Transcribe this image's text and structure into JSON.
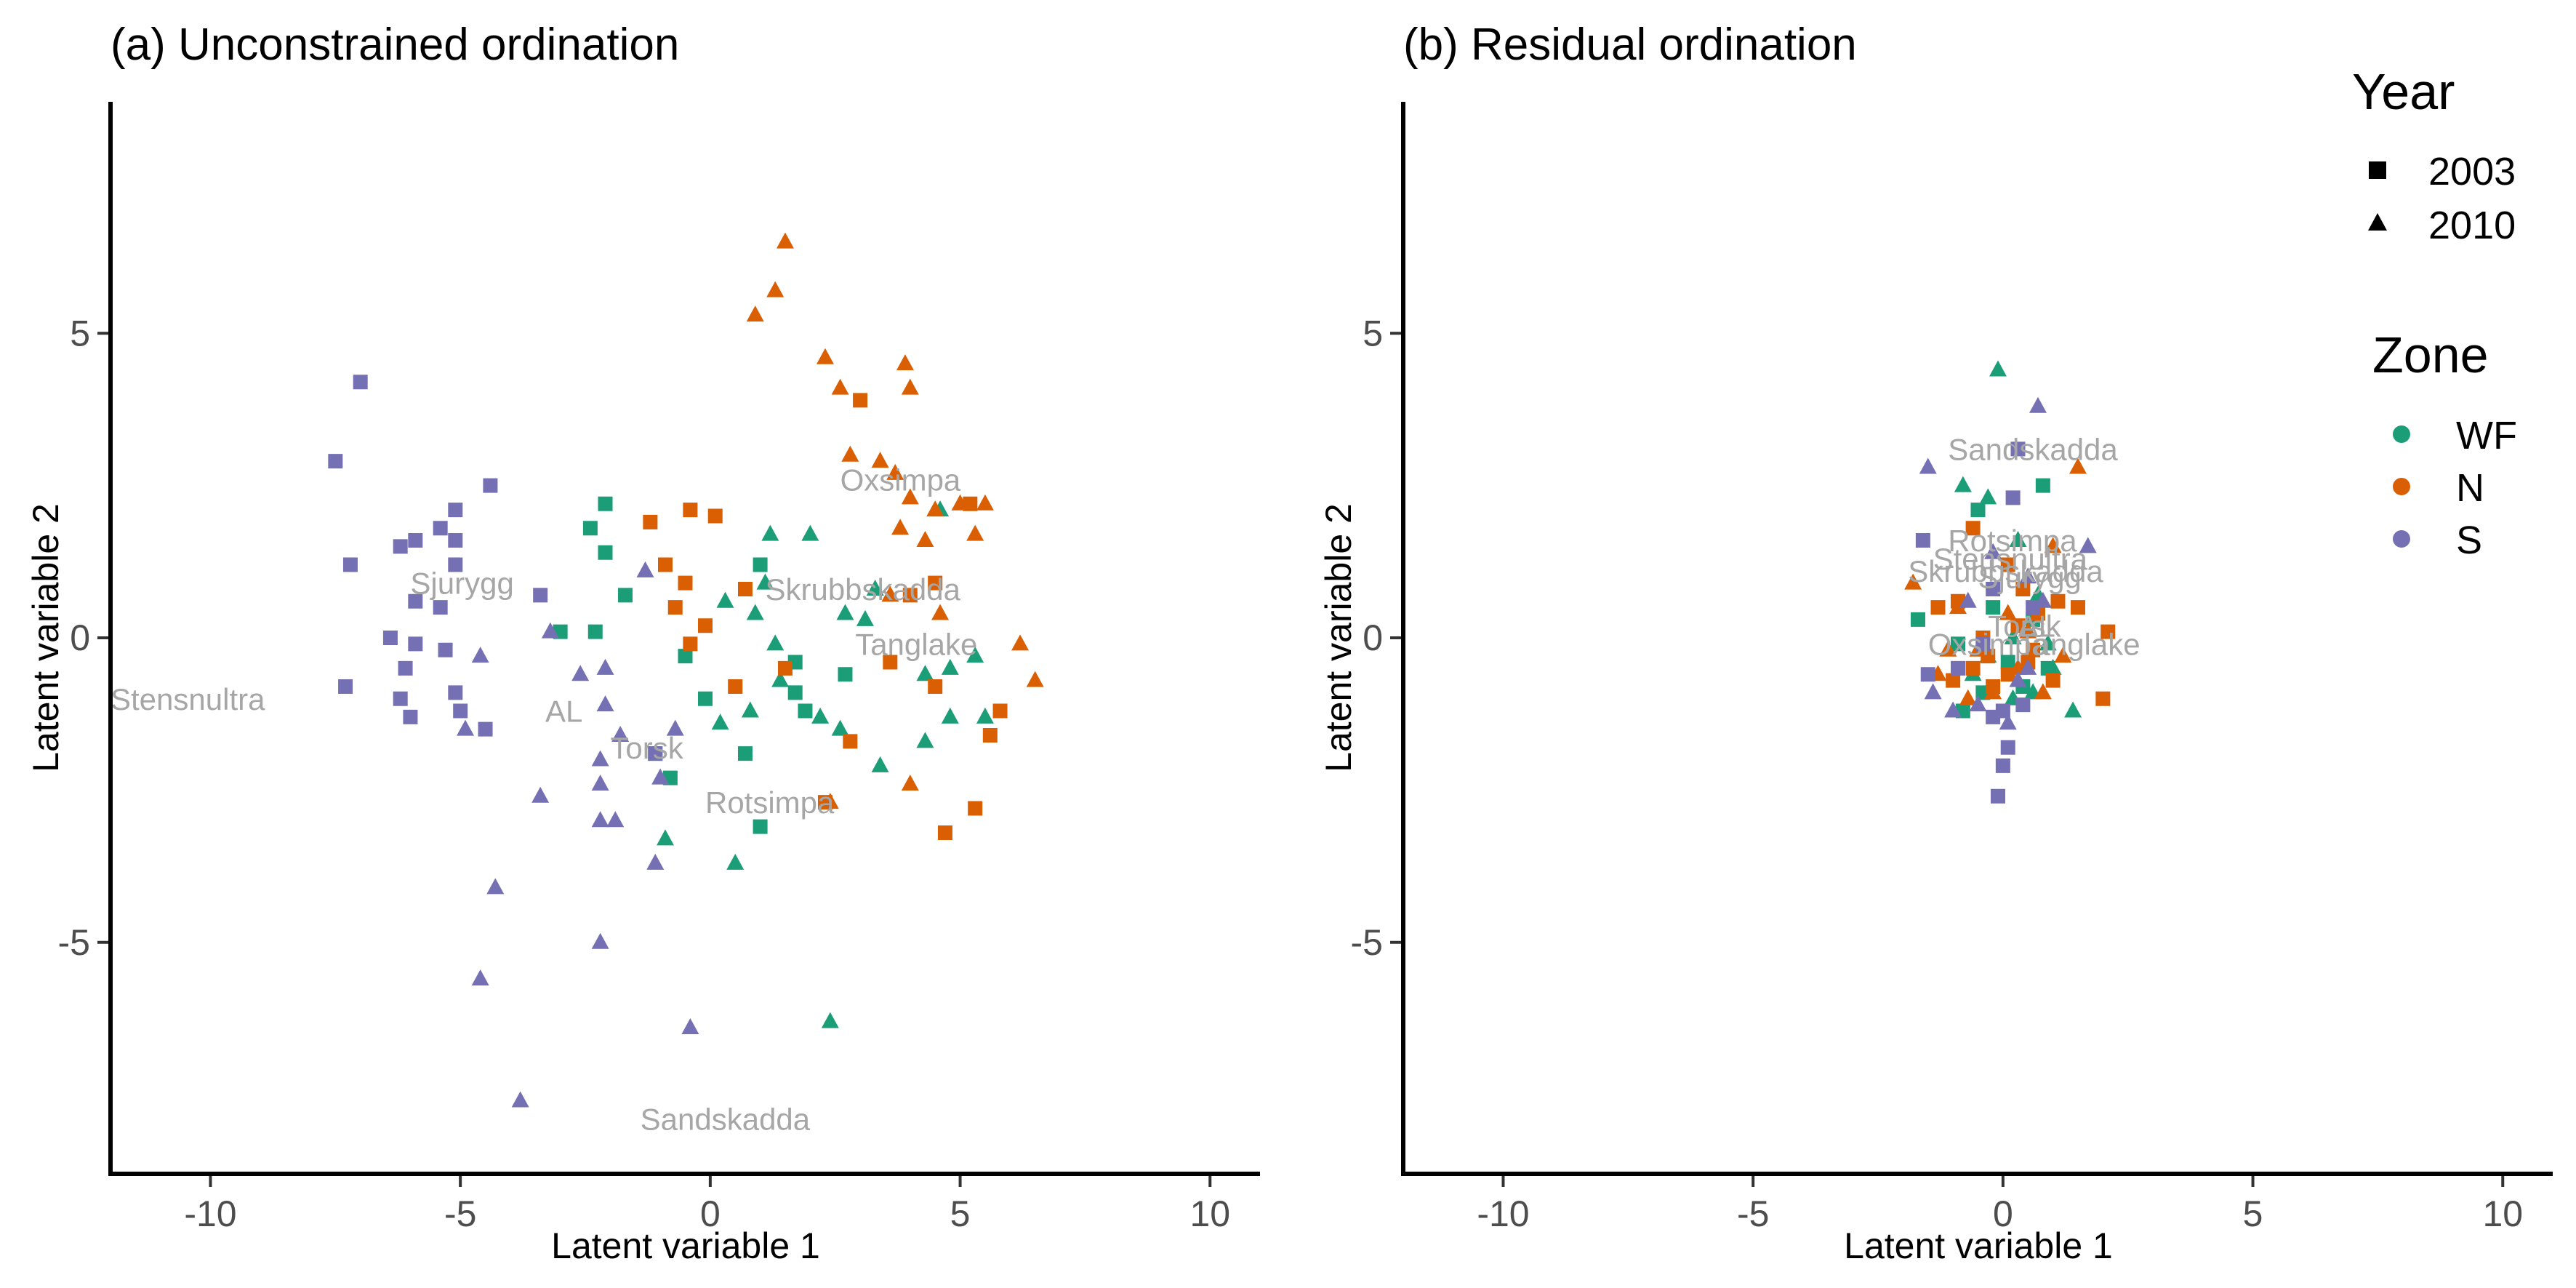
{
  "chart_data": [
    {
      "type": "scatter",
      "title": "(a) Unconstrained ordination",
      "xlabel": "Latent variable 1",
      "ylabel": "Latent variable 2",
      "xlim": [
        -12.0,
        11.0
      ],
      "ylim": [
        -8.8,
        8.8
      ],
      "xticks": [
        -10,
        -5,
        0,
        5,
        10
      ],
      "xtick_labels": [
        "-10",
        "-5",
        "0",
        "5",
        "10"
      ],
      "yticks": [
        -5,
        0,
        5
      ],
      "ytick_labels": [
        "-5",
        "0",
        "5"
      ],
      "grid": false,
      "series": [
        {
          "zone": "WF",
          "year": "2003",
          "points": [
            [
              -2.1,
              2.2
            ],
            [
              -2.4,
              1.8
            ],
            [
              -2.1,
              1.4
            ],
            [
              -1.7,
              0.7
            ],
            [
              -3.0,
              0.1
            ],
            [
              -2.3,
              0.1
            ],
            [
              -0.5,
              -0.3
            ],
            [
              -0.1,
              -1.0
            ],
            [
              -1.1,
              -1.9
            ],
            [
              -0.8,
              -2.3
            ],
            [
              0.7,
              -1.9
            ],
            [
              1.0,
              -3.1
            ],
            [
              1.7,
              -0.4
            ],
            [
              1.7,
              -0.9
            ],
            [
              1.9,
              -1.2
            ],
            [
              2.7,
              -0.6
            ],
            [
              1.0,
              1.2
            ]
          ]
        },
        {
          "zone": "WF",
          "year": "2010",
          "points": [
            [
              1.2,
              1.7
            ],
            [
              2.0,
              1.7
            ],
            [
              1.1,
              0.9
            ],
            [
              0.3,
              0.6
            ],
            [
              0.9,
              0.4
            ],
            [
              1.3,
              -0.1
            ],
            [
              1.4,
              -0.7
            ],
            [
              2.2,
              -1.3
            ],
            [
              2.6,
              -1.5
            ],
            [
              0.8,
              -1.2
            ],
            [
              0.2,
              -1.4
            ],
            [
              3.4,
              -2.1
            ],
            [
              4.3,
              -1.7
            ],
            [
              4.8,
              -1.3
            ],
            [
              5.5,
              -1.3
            ],
            [
              4.3,
              -0.6
            ],
            [
              4.8,
              -0.5
            ],
            [
              5.3,
              -0.3
            ],
            [
              4.6,
              2.1
            ],
            [
              3.1,
              0.3
            ],
            [
              3.3,
              0.8
            ],
            [
              2.7,
              0.4
            ],
            [
              -0.9,
              -3.3
            ],
            [
              0.5,
              -3.7
            ],
            [
              2.4,
              -6.3
            ]
          ]
        },
        {
          "zone": "N",
          "year": "2003",
          "points": [
            [
              -1.2,
              1.9
            ],
            [
              -0.4,
              2.1
            ],
            [
              0.1,
              2.0
            ],
            [
              -0.9,
              1.2
            ],
            [
              -0.5,
              0.9
            ],
            [
              0.7,
              0.8
            ],
            [
              -0.7,
              0.5
            ],
            [
              -0.4,
              -0.1
            ],
            [
              -0.1,
              0.2
            ],
            [
              0.5,
              -0.8
            ],
            [
              1.5,
              -0.5
            ],
            [
              2.8,
              -1.7
            ],
            [
              2.3,
              -2.7
            ],
            [
              3.0,
              3.9
            ],
            [
              4.0,
              0.7
            ],
            [
              4.5,
              0.9
            ],
            [
              4.5,
              -0.8
            ],
            [
              5.2,
              2.2
            ],
            [
              5.8,
              -1.2
            ],
            [
              5.6,
              -1.6
            ],
            [
              5.3,
              -2.8
            ],
            [
              4.7,
              -3.2
            ],
            [
              3.6,
              -0.4
            ]
          ]
        },
        {
          "zone": "N",
          "year": "2010",
          "points": [
            [
              1.5,
              6.5
            ],
            [
              1.3,
              5.7
            ],
            [
              0.9,
              5.3
            ],
            [
              2.3,
              4.6
            ],
            [
              2.6,
              4.1
            ],
            [
              3.9,
              4.5
            ],
            [
              4.0,
              4.1
            ],
            [
              2.8,
              3.0
            ],
            [
              3.4,
              2.9
            ],
            [
              3.7,
              2.7
            ],
            [
              4.0,
              2.3
            ],
            [
              4.5,
              2.1
            ],
            [
              5.0,
              2.2
            ],
            [
              5.5,
              2.2
            ],
            [
              3.8,
              1.8
            ],
            [
              4.3,
              1.6
            ],
            [
              5.3,
              1.7
            ],
            [
              6.2,
              -0.1
            ],
            [
              6.5,
              -0.7
            ],
            [
              2.4,
              -2.7
            ],
            [
              4.0,
              -2.4
            ],
            [
              4.6,
              0.4
            ],
            [
              3.6,
              0.7
            ]
          ]
        },
        {
          "zone": "S",
          "year": "2003",
          "points": [
            [
              -7.0,
              4.2
            ],
            [
              -7.5,
              2.9
            ],
            [
              -7.2,
              1.2
            ],
            [
              -6.2,
              1.5
            ],
            [
              -5.9,
              1.6
            ],
            [
              -5.4,
              1.8
            ],
            [
              -5.1,
              2.1
            ],
            [
              -5.1,
              1.6
            ],
            [
              -5.1,
              1.2
            ],
            [
              -4.4,
              2.5
            ],
            [
              -5.9,
              0.6
            ],
            [
              -5.4,
              0.5
            ],
            [
              -3.4,
              0.7
            ],
            [
              -6.4,
              0.0
            ],
            [
              -5.9,
              -0.1
            ],
            [
              -6.1,
              -0.5
            ],
            [
              -5.3,
              -0.2
            ],
            [
              -5.1,
              -0.9
            ],
            [
              -5.0,
              -1.2
            ],
            [
              -6.2,
              -1.0
            ],
            [
              -6.0,
              -1.3
            ],
            [
              -7.3,
              -0.8
            ],
            [
              -4.5,
              -1.5
            ],
            [
              -1.1,
              -1.9
            ]
          ]
        },
        {
          "zone": "S",
          "year": "2010",
          "points": [
            [
              -3.2,
              0.1
            ],
            [
              -1.3,
              1.1
            ],
            [
              -4.6,
              -0.3
            ],
            [
              -2.6,
              -0.6
            ],
            [
              -2.1,
              -0.5
            ],
            [
              -2.1,
              -1.1
            ],
            [
              -4.9,
              -1.5
            ],
            [
              -1.8,
              -1.6
            ],
            [
              -0.7,
              -1.5
            ],
            [
              -2.2,
              -2.0
            ],
            [
              -1.0,
              -2.3
            ],
            [
              -2.2,
              -2.4
            ],
            [
              -3.4,
              -2.6
            ],
            [
              -2.2,
              -3.0
            ],
            [
              -1.9,
              -3.0
            ],
            [
              -1.1,
              -3.7
            ],
            [
              -4.3,
              -4.1
            ],
            [
              -2.2,
              -5.0
            ],
            [
              -4.6,
              -5.6
            ],
            [
              -0.4,
              -6.4
            ],
            [
              -3.8,
              -7.6
            ]
          ]
        }
      ],
      "annotations": [
        {
          "text": "Oxsimpa",
          "x": 2.6,
          "y": 2.6
        },
        {
          "text": "Sjurygg",
          "x": -6.0,
          "y": 0.9
        },
        {
          "text": "Skrubbskadda",
          "x": 1.1,
          "y": 0.8
        },
        {
          "text": "Tanglake",
          "x": 2.9,
          "y": -0.1
        },
        {
          "text": "Stensnultra",
          "x": -12.0,
          "y": -1.0
        },
        {
          "text": "AL",
          "x": -3.3,
          "y": -1.2
        },
        {
          "text": "Torsk",
          "x": -2.0,
          "y": -1.8
        },
        {
          "text": "Rotsimpa",
          "x": -0.1,
          "y": -2.7
        },
        {
          "text": "Sandskadda",
          "x": -1.4,
          "y": -7.9
        }
      ]
    },
    {
      "type": "scatter",
      "title": "(b) Residual ordination",
      "xlabel": "Latent variable 1",
      "ylabel": "Latent variable 2",
      "xlim": [
        -12.0,
        11.0
      ],
      "ylim": [
        -8.8,
        8.8
      ],
      "xticks": [
        -10,
        -5,
        0,
        5,
        10
      ],
      "xtick_labels": [
        "-10",
        "-5",
        "0",
        "5",
        "10"
      ],
      "yticks": [
        -5,
        0,
        5
      ],
      "ytick_labels": [
        "-5",
        "0",
        "5"
      ],
      "grid": false,
      "series": [
        {
          "zone": "WF",
          "year": "2003",
          "points": [
            [
              0.8,
              2.5
            ],
            [
              -0.5,
              2.1
            ],
            [
              -1.7,
              0.3
            ],
            [
              -0.9,
              -0.1
            ],
            [
              -0.2,
              0.5
            ],
            [
              0.6,
              0.3
            ],
            [
              0.1,
              -0.4
            ],
            [
              -0.4,
              -0.9
            ],
            [
              0.9,
              -0.5
            ],
            [
              -0.8,
              -1.2
            ],
            [
              0.4,
              -0.8
            ]
          ]
        },
        {
          "zone": "WF",
          "year": "2010",
          "points": [
            [
              -0.1,
              4.4
            ],
            [
              -0.8,
              2.5
            ],
            [
              -0.3,
              2.3
            ],
            [
              0.3,
              1.6
            ],
            [
              0.7,
              0.7
            ],
            [
              0.2,
              0.0
            ],
            [
              -0.3,
              -0.3
            ],
            [
              0.9,
              -0.1
            ],
            [
              0.6,
              -0.9
            ],
            [
              1.4,
              -1.2
            ],
            [
              1.0,
              -0.5
            ],
            [
              -0.6,
              -0.6
            ],
            [
              0.2,
              -1.0
            ]
          ]
        },
        {
          "zone": "N",
          "year": "2003",
          "points": [
            [
              -0.6,
              1.8
            ],
            [
              0.1,
              1.2
            ],
            [
              -0.9,
              0.6
            ],
            [
              0.4,
              0.8
            ],
            [
              1.1,
              0.6
            ],
            [
              1.5,
              0.5
            ],
            [
              2.1,
              0.1
            ],
            [
              0.3,
              0.2
            ],
            [
              -0.3,
              -0.3
            ],
            [
              -0.6,
              -0.5
            ],
            [
              0.5,
              -0.4
            ],
            [
              2.0,
              -1.0
            ],
            [
              -1.0,
              -0.7
            ],
            [
              -0.2,
              -0.8
            ],
            [
              1.0,
              -0.7
            ],
            [
              0.7,
              0.4
            ],
            [
              -0.4,
              0.0
            ],
            [
              0.1,
              -0.6
            ],
            [
              -1.3,
              0.5
            ],
            [
              0.6,
              -0.2
            ]
          ]
        },
        {
          "zone": "N",
          "year": "2010",
          "points": [
            [
              1.5,
              2.8
            ],
            [
              -1.8,
              0.9
            ],
            [
              -0.9,
              0.5
            ],
            [
              1.0,
              1.5
            ],
            [
              -0.5,
              -0.2
            ],
            [
              0.3,
              -0.5
            ],
            [
              -1.3,
              -0.6
            ],
            [
              0.8,
              -0.9
            ],
            [
              -0.7,
              -1.0
            ],
            [
              0.1,
              0.4
            ],
            [
              0.5,
              0.1
            ],
            [
              -0.2,
              -0.9
            ],
            [
              1.2,
              -0.3
            ],
            [
              -1.1,
              -0.2
            ]
          ]
        },
        {
          "zone": "S",
          "year": "2003",
          "points": [
            [
              0.3,
              3.1
            ],
            [
              0.2,
              2.3
            ],
            [
              -1.6,
              1.6
            ],
            [
              -0.2,
              0.8
            ],
            [
              0.6,
              0.5
            ],
            [
              -0.4,
              -0.1
            ],
            [
              -0.9,
              -0.5
            ],
            [
              -1.5,
              -0.6
            ],
            [
              0.0,
              -1.2
            ],
            [
              0.1,
              -1.8
            ],
            [
              0.0,
              -2.1
            ],
            [
              -0.1,
              -2.6
            ],
            [
              0.4,
              -1.1
            ],
            [
              -0.2,
              -1.3
            ]
          ]
        },
        {
          "zone": "S",
          "year": "2010",
          "points": [
            [
              0.7,
              3.8
            ],
            [
              -1.5,
              2.8
            ],
            [
              -0.2,
              1.4
            ],
            [
              1.7,
              1.5
            ],
            [
              0.5,
              1.0
            ],
            [
              0.8,
              0.6
            ],
            [
              -1.0,
              -1.2
            ],
            [
              0.5,
              -0.5
            ],
            [
              -0.5,
              -1.1
            ],
            [
              0.1,
              -1.4
            ],
            [
              -1.4,
              -0.9
            ],
            [
              0.3,
              -0.7
            ],
            [
              -0.7,
              0.6
            ]
          ]
        }
      ],
      "annotations": [
        {
          "text": "Sandskadda",
          "x": -1.1,
          "y": 3.1
        },
        {
          "text": "Rotsimpa",
          "x": -1.1,
          "y": 1.6
        },
        {
          "text": "Stensnultra",
          "x": -1.4,
          "y": 1.3
        },
        {
          "text": "Skrubbskadda",
          "x": -1.9,
          "y": 1.1
        },
        {
          "text": "Sjurygg",
          "x": -0.5,
          "y": 1.0
        },
        {
          "text": "Torsk",
          "x": -0.3,
          "y": 0.2
        },
        {
          "text": "AL",
          "x": 0.3,
          "y": 0.2
        },
        {
          "text": "Oxsimpa",
          "x": -1.5,
          "y": -0.1
        },
        {
          "text": "Tanglake",
          "x": 0.3,
          "y": -0.1
        }
      ]
    }
  ],
  "legend": {
    "year_title": "Year",
    "years": [
      {
        "label": "2003",
        "shape": "square"
      },
      {
        "label": "2010",
        "shape": "triangle"
      }
    ],
    "zone_title": "Zone",
    "zones": [
      {
        "label": "WF",
        "color": "#1b9e77"
      },
      {
        "label": "N",
        "color": "#d95f02"
      },
      {
        "label": "S",
        "color": "#7570b3"
      }
    ]
  }
}
